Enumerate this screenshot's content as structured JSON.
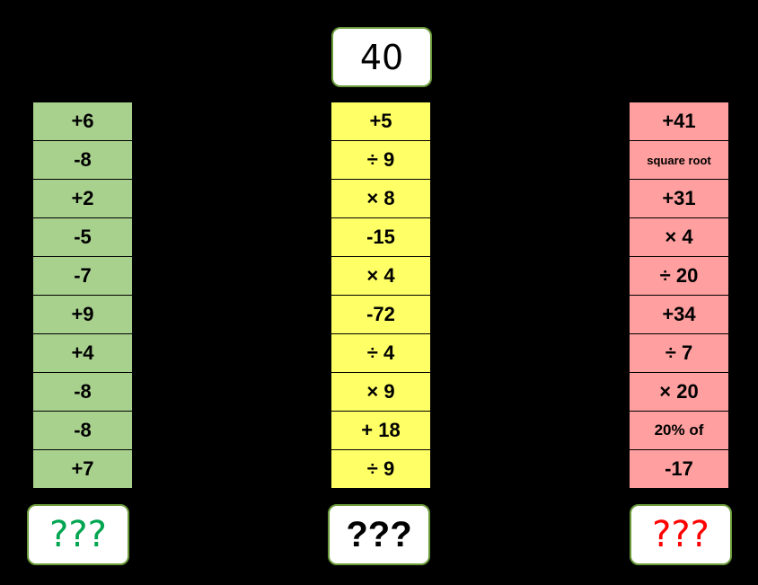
{
  "start_value": "40",
  "columns": {
    "green": {
      "color": "#a9d18e",
      "operations": [
        "+6",
        "-8",
        "+2",
        "-5",
        "-7",
        "+9",
        "+4",
        "-8",
        "-8",
        "+7"
      ],
      "answer": "???",
      "answer_color": "#00a550"
    },
    "yellow": {
      "color": "#ffff66",
      "operations": [
        "+5",
        "÷ 9",
        "× 8",
        "-15",
        "× 4",
        "-72",
        "÷ 4",
        "× 9",
        "+ 18",
        "÷ 9"
      ],
      "answer": "???",
      "answer_color": "#000000"
    },
    "red": {
      "color": "#ff9f9f",
      "operations": [
        "+41",
        "square root",
        "+31",
        "× 4",
        "÷ 20",
        "+34",
        "÷ 7",
        "× 20",
        "20% of",
        "-17"
      ],
      "answer": "???",
      "answer_color": "#ff0000"
    }
  }
}
